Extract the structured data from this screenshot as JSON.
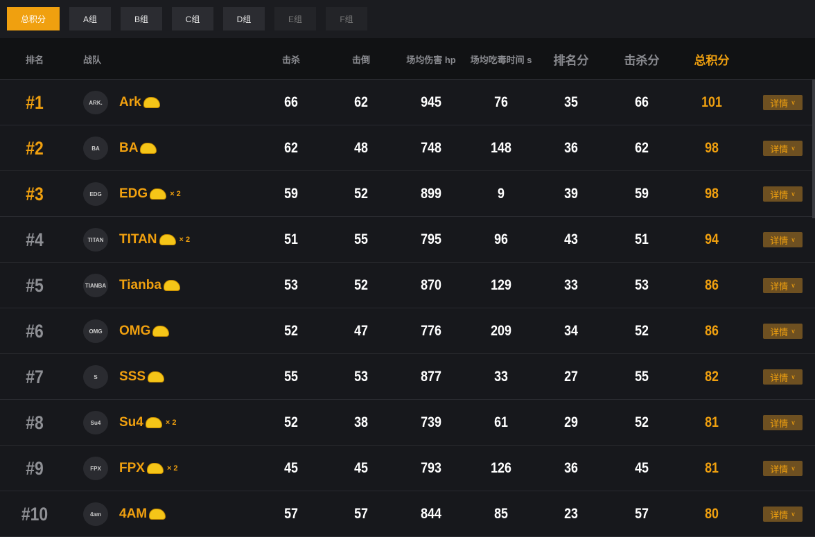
{
  "tabs": [
    {
      "label": "总积分",
      "active": true
    },
    {
      "label": "A组"
    },
    {
      "label": "B组"
    },
    {
      "label": "C组"
    },
    {
      "label": "D组"
    },
    {
      "label": "E组",
      "disabled": true
    },
    {
      "label": "F组",
      "disabled": true
    }
  ],
  "header": {
    "rank": "排名",
    "team": "战队",
    "kills": "击杀",
    "knocks": "击倒",
    "avg_damage": "场均伤害 hp",
    "avg_poison_time": "场均吃毒时间 s",
    "placement_pts": "排名分",
    "kill_pts": "击杀分",
    "total": "总积分"
  },
  "detail_label": "详情",
  "colors": {
    "accent": "#f0a00f",
    "background": "#17181c"
  },
  "rows": [
    {
      "rank": "#1",
      "team": "Ark",
      "chicken": "",
      "kills": "66",
      "knocks": "62",
      "dmg": "945",
      "poison": "76",
      "place": "35",
      "killpts": "66",
      "total": "101",
      "logo": "ARK."
    },
    {
      "rank": "#2",
      "team": "BA",
      "chicken": "",
      "kills": "62",
      "knocks": "48",
      "dmg": "748",
      "poison": "148",
      "place": "36",
      "killpts": "62",
      "total": "98",
      "logo": "BA"
    },
    {
      "rank": "#3",
      "team": "EDG",
      "chicken": "× 2",
      "kills": "59",
      "knocks": "52",
      "dmg": "899",
      "poison": "9",
      "place": "39",
      "killpts": "59",
      "total": "98",
      "logo": "EDG"
    },
    {
      "rank": "#4",
      "team": "TITAN",
      "chicken": "× 2",
      "kills": "51",
      "knocks": "55",
      "dmg": "795",
      "poison": "96",
      "place": "43",
      "killpts": "51",
      "total": "94",
      "logo": "TITAN"
    },
    {
      "rank": "#5",
      "team": "Tianba",
      "chicken": "",
      "kills": "53",
      "knocks": "52",
      "dmg": "870",
      "poison": "129",
      "place": "33",
      "killpts": "53",
      "total": "86",
      "logo": "TIANBA"
    },
    {
      "rank": "#6",
      "team": "OMG",
      "chicken": "",
      "kills": "52",
      "knocks": "47",
      "dmg": "776",
      "poison": "209",
      "place": "34",
      "killpts": "52",
      "total": "86",
      "logo": "OMG"
    },
    {
      "rank": "#7",
      "team": "SSS",
      "chicken": "",
      "kills": "55",
      "knocks": "53",
      "dmg": "877",
      "poison": "33",
      "place": "27",
      "killpts": "55",
      "total": "82",
      "logo": "S"
    },
    {
      "rank": "#8",
      "team": "Su4",
      "chicken": "× 2",
      "kills": "52",
      "knocks": "38",
      "dmg": "739",
      "poison": "61",
      "place": "29",
      "killpts": "52",
      "total": "81",
      "logo": "Su4"
    },
    {
      "rank": "#9",
      "team": "FPX",
      "chicken": "× 2",
      "kills": "45",
      "knocks": "45",
      "dmg": "793",
      "poison": "126",
      "place": "36",
      "killpts": "45",
      "total": "81",
      "logo": "FPX"
    },
    {
      "rank": "#10",
      "team": "4AM",
      "chicken": "",
      "kills": "57",
      "knocks": "57",
      "dmg": "844",
      "poison": "85",
      "place": "23",
      "killpts": "57",
      "total": "80",
      "logo": "4am"
    }
  ]
}
